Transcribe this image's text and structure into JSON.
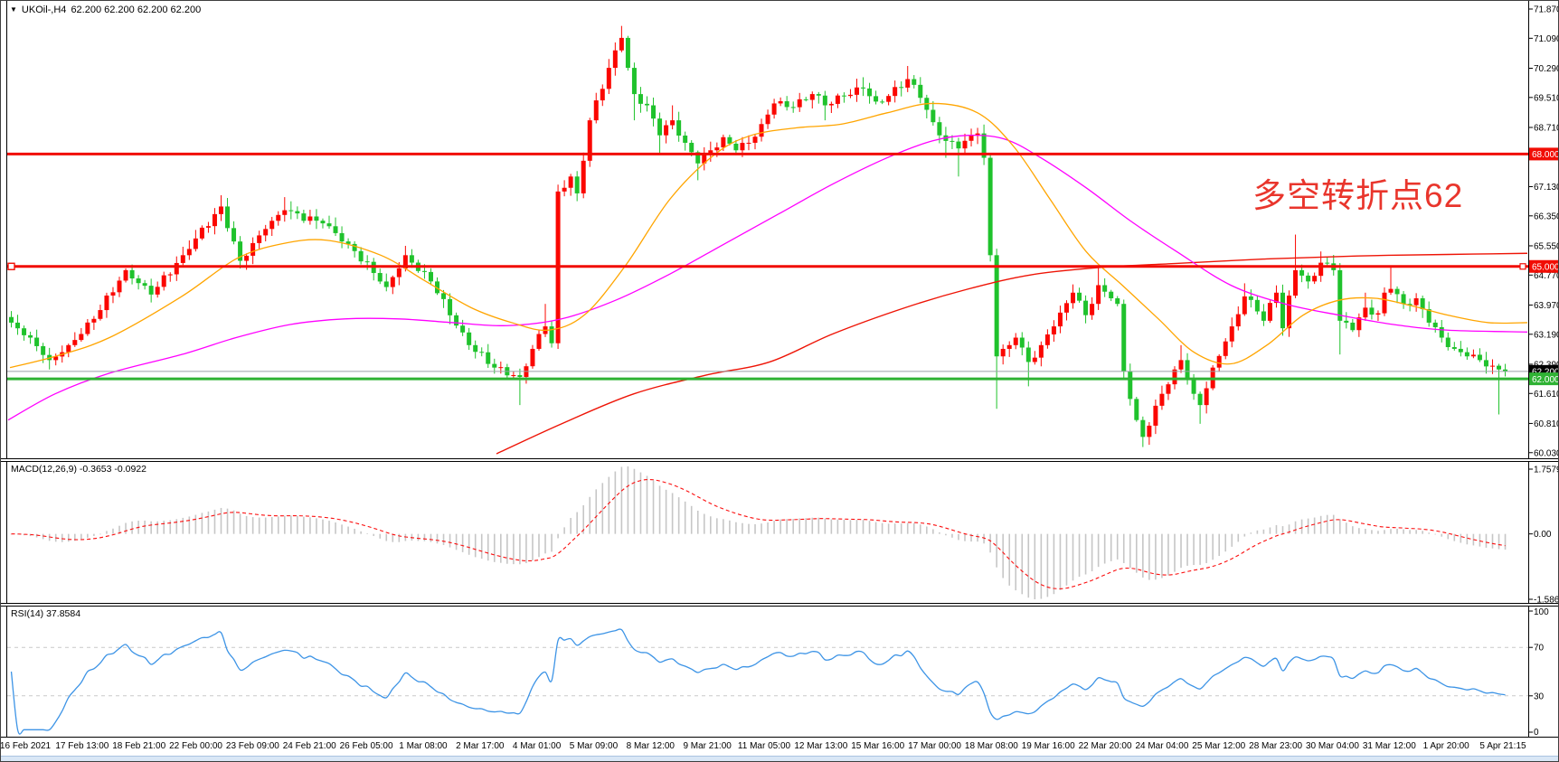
{
  "window": {
    "dropdown_icon": "▼",
    "symbol_period": "UKOil-,H4",
    "quotes": "62.200 62.200 62.200 62.200"
  },
  "annotation": {
    "text": "多空转折点62",
    "color": "#e9352c"
  },
  "price_axis": {
    "ticks": [
      "71.870",
      "71.090",
      "70.290",
      "69.510",
      "68.710",
      "67.930",
      "67.130",
      "66.350",
      "65.550",
      "64.770",
      "63.970",
      "63.190",
      "62.390",
      "61.610",
      "60.810",
      "60.030"
    ]
  },
  "price_badges": [
    {
      "name": "badge-68000",
      "label": "68.000",
      "price": 68.0,
      "bg": "#f10d04",
      "fg": "#ffffff"
    },
    {
      "name": "badge-65000",
      "label": "65.000",
      "price": 65.0,
      "bg": "#f10d04",
      "fg": "#ffffff",
      "handle": true
    },
    {
      "name": "badge-bid",
      "label": "62.200",
      "price": 62.2,
      "bg": "#000000",
      "fg": "#ffffff"
    },
    {
      "name": "badge-62000",
      "label": "62.000",
      "price": 62.0,
      "bg": "#2fb234",
      "fg": "#ffffff"
    }
  ],
  "hlines": [
    {
      "name": "hline-68000",
      "price": 68.0,
      "color": "#f10d04",
      "width": 3
    },
    {
      "name": "hline-65000",
      "price": 65.0,
      "color": "#f10d04",
      "width": 3,
      "left_handle": true
    },
    {
      "name": "hline-62000",
      "price": 62.0,
      "color": "#2fb234",
      "width": 3
    }
  ],
  "bid_line": {
    "price": 62.2,
    "color": "#9aa0a6"
  },
  "timeline": [
    "16 Feb 2021",
    "17 Feb 13:00",
    "18 Feb 21:00",
    "22 Feb 00:00",
    "23 Feb 09:00",
    "24 Feb 21:00",
    "26 Feb 05:00",
    "1 Mar 08:00",
    "2 Mar 17:00",
    "4 Mar 01:00",
    "5 Mar 09:00",
    "8 Mar 12:00",
    "9 Mar 21:00",
    "11 Mar 05:00",
    "12 Mar 13:00",
    "15 Mar 16:00",
    "17 Mar 00:00",
    "18 Mar 08:00",
    "19 Mar 16:00",
    "22 Mar 20:00",
    "24 Mar 04:00",
    "25 Mar 12:00",
    "28 Mar 23:00",
    "30 Mar 04:00",
    "31 Mar 12:00",
    "1 Apr 20:00",
    "5 Apr 21:15"
  ],
  "macd_panel": {
    "label": "MACD(12,26,9) -0.3653 -0.0922",
    "value_main": "-0.3653",
    "value_signal": "-0.0922",
    "axis_top": "1.7579",
    "axis_zero": "0.00",
    "axis_bottom": "-1.5867",
    "histogram_color": "#c6c6c6",
    "signal_color": "#fb0e0e"
  },
  "rsi_panel": {
    "label": "RSI(14) 37.8584",
    "value": "37.8584",
    "axis_labels": [
      "100",
      "70",
      "30",
      "0"
    ],
    "levels": [
      70,
      30
    ],
    "line_color": "#3d94e6",
    "level_color": "#c9c9c9"
  },
  "chart_data": {
    "type": "candlestick",
    "symbol": "UKOil-",
    "timeframe": "H4",
    "n_bars": 236,
    "y_range": [
      60.03,
      71.87
    ],
    "up_color": "#fb0600",
    "down_color": "#1fc22c",
    "close_keyframes": [
      [
        0,
        63.5
      ],
      [
        3,
        63.1
      ],
      [
        6,
        62.5,
        62.25
      ],
      [
        9,
        62.9
      ],
      [
        13,
        63.6
      ],
      [
        18,
        64.9
      ],
      [
        22,
        64.25
      ],
      [
        27,
        65.3
      ],
      [
        33,
        66.6,
        null,
        66.9
      ],
      [
        36,
        65.15
      ],
      [
        40,
        66.0
      ],
      [
        43,
        66.5,
        null,
        66.85
      ],
      [
        49,
        66.15
      ],
      [
        53,
        65.6
      ],
      [
        59,
        64.45
      ],
      [
        62,
        65.3,
        null,
        65.55
      ],
      [
        66,
        64.6
      ],
      [
        72,
        62.9
      ],
      [
        76,
        62.3
      ],
      [
        80,
        62.05,
        61.3
      ],
      [
        82,
        62.8
      ],
      [
        84,
        63.4,
        null,
        64.0
      ],
      [
        85,
        62.95
      ],
      [
        86,
        67.0,
        62.8
      ],
      [
        88,
        67.4
      ],
      [
        89,
        66.95
      ],
      [
        91,
        68.9
      ],
      [
        94,
        70.3
      ],
      [
        96,
        71.1,
        null,
        71.42
      ],
      [
        97,
        70.3
      ],
      [
        98,
        69.6,
        68.9
      ],
      [
        100,
        69.3
      ],
      [
        102,
        68.5,
        68.0
      ],
      [
        104,
        68.9,
        null,
        69.3
      ],
      [
        106,
        68.3
      ],
      [
        108,
        67.75,
        67.3
      ],
      [
        110,
        68.1
      ],
      [
        112,
        68.45
      ],
      [
        114,
        68.1
      ],
      [
        116,
        68.3
      ],
      [
        118,
        68.8
      ],
      [
        120,
        69.35
      ],
      [
        123,
        69.25
      ],
      [
        126,
        69.6
      ],
      [
        128,
        69.3,
        68.9
      ],
      [
        131,
        69.55
      ],
      [
        134,
        69.75,
        null,
        70.05
      ],
      [
        136,
        69.4
      ],
      [
        138,
        69.55
      ],
      [
        141,
        70.0,
        null,
        70.35
      ],
      [
        143,
        69.5
      ],
      [
        145,
        68.85
      ],
      [
        147,
        68.35,
        67.9
      ],
      [
        149,
        68.15,
        67.4
      ],
      [
        151,
        68.5
      ],
      [
        152,
        68.55
      ],
      [
        153,
        67.9
      ],
      [
        154,
        65.3
      ],
      [
        155,
        62.6,
        61.2
      ],
      [
        157,
        62.9
      ],
      [
        158,
        63.1
      ],
      [
        160,
        62.45,
        61.8
      ],
      [
        162,
        62.9
      ],
      [
        164,
        63.4
      ],
      [
        167,
        64.3
      ],
      [
        169,
        63.7
      ],
      [
        171,
        64.5,
        null,
        65.0
      ],
      [
        173,
        64.15
      ],
      [
        174,
        64.0
      ],
      [
        175,
        62.2
      ],
      [
        177,
        60.9
      ],
      [
        178,
        60.45,
        60.18
      ],
      [
        179,
        60.75
      ],
      [
        181,
        61.6
      ],
      [
        183,
        62.25
      ],
      [
        184,
        62.5,
        null,
        62.9
      ],
      [
        186,
        61.6
      ],
      [
        187,
        61.3,
        60.8
      ],
      [
        189,
        62.3
      ],
      [
        192,
        63.4
      ],
      [
        194,
        64.2,
        null,
        64.55
      ],
      [
        196,
        63.8
      ],
      [
        197,
        63.55
      ],
      [
        199,
        64.3
      ],
      [
        200,
        63.35
      ],
      [
        202,
        64.9,
        null,
        65.85
      ],
      [
        204,
        64.6
      ],
      [
        206,
        65.1,
        null,
        65.4
      ],
      [
        208,
        64.9
      ],
      [
        209,
        63.55,
        62.65
      ],
      [
        211,
        63.3
      ],
      [
        213,
        63.9,
        null,
        64.3
      ],
      [
        215,
        63.75
      ],
      [
        216,
        64.3
      ],
      [
        217,
        64.4,
        null,
        65.0
      ],
      [
        219,
        64.0
      ],
      [
        221,
        64.15
      ],
      [
        223,
        63.5
      ],
      [
        225,
        63.1
      ],
      [
        227,
        62.8
      ],
      [
        229,
        62.6
      ],
      [
        231,
        62.5
      ],
      [
        233,
        62.35
      ],
      [
        234,
        62.25,
        61.05
      ],
      [
        235,
        62.2
      ]
    ],
    "ma_lines": {
      "fast_orange": {
        "color": "#ffa500",
        "width": 1.3,
        "points": [
          [
            10,
            62.3
          ],
          [
            60,
            62.6
          ],
          [
            120,
            63.1
          ],
          [
            200,
            64.2
          ],
          [
            260,
            65.2
          ],
          [
            310,
            65.6
          ],
          [
            360,
            65.7
          ],
          [
            420,
            65.3
          ],
          [
            470,
            64.6
          ],
          [
            520,
            63.9
          ],
          [
            565,
            63.5
          ],
          [
            605,
            63.3
          ],
          [
            645,
            63.7
          ],
          [
            690,
            65.0
          ],
          [
            740,
            66.8
          ],
          [
            790,
            68.0
          ],
          [
            830,
            68.5
          ],
          [
            880,
            68.7
          ],
          [
            930,
            68.8
          ],
          [
            980,
            69.1
          ],
          [
            1030,
            69.35
          ],
          [
            1080,
            69.1
          ],
          [
            1120,
            68.2
          ],
          [
            1160,
            66.8
          ],
          [
            1200,
            65.4
          ],
          [
            1240,
            64.5
          ],
          [
            1280,
            63.6
          ],
          [
            1320,
            62.7
          ],
          [
            1360,
            62.4
          ],
          [
            1400,
            62.9
          ],
          [
            1440,
            63.7
          ],
          [
            1480,
            64.1
          ],
          [
            1520,
            64.15
          ],
          [
            1560,
            63.95
          ],
          [
            1600,
            63.7
          ],
          [
            1645,
            63.5
          ],
          [
            1688,
            63.5
          ]
        ]
      },
      "mid_magenta": {
        "color": "#ff00ff",
        "width": 1.3,
        "points": [
          [
            8,
            60.9
          ],
          [
            60,
            61.6
          ],
          [
            120,
            62.15
          ],
          [
            200,
            62.65
          ],
          [
            260,
            63.1
          ],
          [
            320,
            63.45
          ],
          [
            380,
            63.6
          ],
          [
            440,
            63.6
          ],
          [
            500,
            63.5
          ],
          [
            560,
            63.42
          ],
          [
            620,
            63.6
          ],
          [
            680,
            64.1
          ],
          [
            740,
            64.8
          ],
          [
            800,
            65.6
          ],
          [
            860,
            66.4
          ],
          [
            920,
            67.2
          ],
          [
            980,
            67.9
          ],
          [
            1030,
            68.35
          ],
          [
            1070,
            68.5
          ],
          [
            1110,
            68.4
          ],
          [
            1150,
            67.9
          ],
          [
            1200,
            67.1
          ],
          [
            1250,
            66.2
          ],
          [
            1300,
            65.4
          ],
          [
            1360,
            64.5
          ],
          [
            1420,
            64.0
          ],
          [
            1480,
            63.7
          ],
          [
            1540,
            63.45
          ],
          [
            1600,
            63.3
          ],
          [
            1688,
            63.25
          ]
        ]
      },
      "slow_red": {
        "color": "#ee1406",
        "width": 1.4,
        "points": [
          [
            548,
            60.0
          ],
          [
            620,
            60.8
          ],
          [
            700,
            61.6
          ],
          [
            780,
            62.1
          ],
          [
            850,
            62.45
          ],
          [
            920,
            63.2
          ],
          [
            1000,
            63.9
          ],
          [
            1070,
            64.4
          ],
          [
            1140,
            64.78
          ],
          [
            1220,
            64.98
          ],
          [
            1300,
            65.08
          ],
          [
            1400,
            65.2
          ],
          [
            1500,
            65.28
          ],
          [
            1600,
            65.32
          ],
          [
            1688,
            65.35
          ]
        ]
      }
    }
  }
}
